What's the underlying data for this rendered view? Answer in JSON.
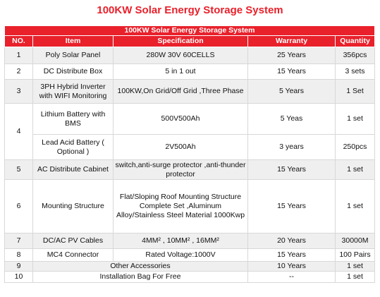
{
  "title": "100KW Solar Energy Storage System",
  "table": {
    "caption": "100KW Solar Energy Storage System",
    "header": [
      "NO.",
      "Item",
      "Specification",
      "Warranty",
      "Quantity"
    ],
    "rows": [
      {
        "no": "1",
        "item": "Poly Solar Panel",
        "specification": "280W 30V 60CELLS",
        "warranty": "25 Years",
        "quantity": "356pcs"
      },
      {
        "no": "2",
        "item": "DC Distribute Box",
        "specification": "5  in 1 out",
        "warranty": "15 Years",
        "quantity": "3 sets"
      },
      {
        "no": "3",
        "item": "3PH Hybrid Inverter with WIFI Monitoring",
        "specification": "100KW,On Grid/Off Grid ,Three Phase",
        "warranty": "5 Years",
        "quantity": "1 Set"
      },
      {
        "no": "4",
        "item": "Lithium Battery with BMS",
        "specification": "500V500Ah",
        "warranty": "5 Yeas",
        "quantity": "1 set"
      },
      {
        "item": "Lead Acid  Battery ( Optional )",
        "specification": "2V500Ah",
        "warranty": "3 years",
        "quantity": "250pcs"
      },
      {
        "no": "5",
        "item": "AC Distribute Cabinet",
        "specification": "switch,anti-surge protector ,anti-thunder protector",
        "warranty": "15 Years",
        "quantity": "1 set"
      },
      {
        "no": "6",
        "item": "Mounting Structure",
        "specification": "Flat/Sloping Roof Mounting Structure Complete Set ,Aluminum Alloy/Stainless Steel Material 1000Kwp",
        "warranty": "15 Years",
        "quantity": "1 set"
      },
      {
        "no": "7",
        "item": "DC/AC PV Cables",
        "specification": "4MM² , 10MM² , 16MM²",
        "warranty": "20 Years",
        "quantity": "30000M"
      },
      {
        "no": "8",
        "item": "MC4 Connector",
        "specification": "Rated Voltage:1000V",
        "warranty": "15 Years",
        "quantity": "100 Pairs"
      },
      {
        "no": "9",
        "item": "Other Accessories",
        "warranty": "10 Years",
        "quantity": "1 set"
      },
      {
        "no": "10",
        "item": "Installation Bag For Free",
        "warranty": "--",
        "quantity": "1 set"
      }
    ]
  }
}
